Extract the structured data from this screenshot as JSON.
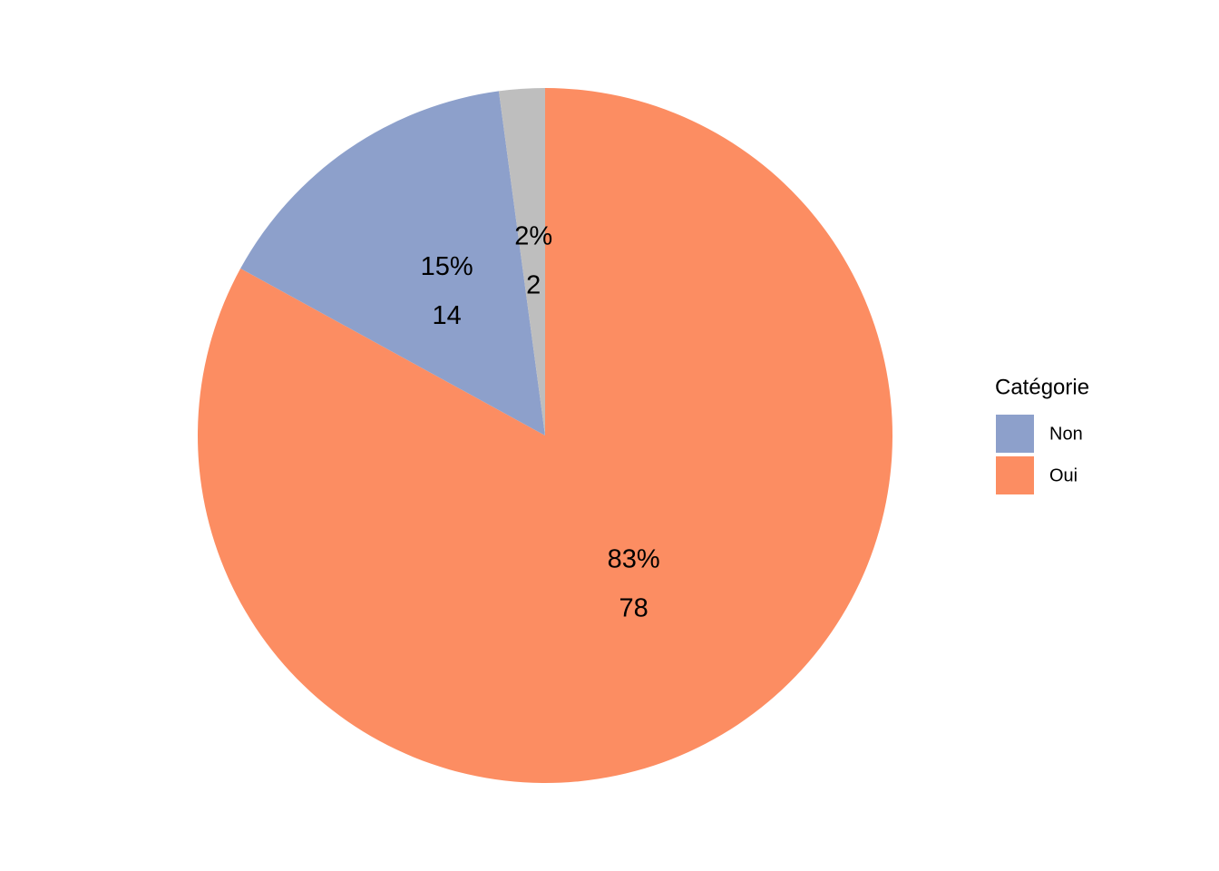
{
  "chart_data": {
    "type": "pie",
    "categories": [
      "Oui",
      "Non",
      null
    ],
    "values": [
      78,
      14,
      2
    ],
    "shares": [
      83,
      15,
      2
    ],
    "share_labels": [
      "83%",
      "15%",
      "2%"
    ],
    "colors": [
      "#fc8d62",
      "#8da0cb",
      "#bebebe"
    ],
    "legend_title": "Catégorie"
  }
}
